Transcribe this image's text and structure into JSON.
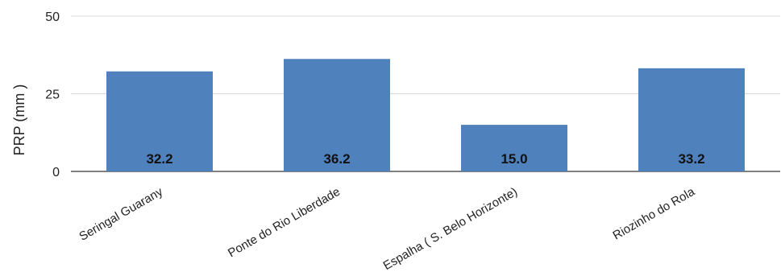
{
  "chart_data": {
    "type": "bar",
    "title": "",
    "xlabel": "",
    "ylabel": "PRP (mm )",
    "ylim": [
      0,
      50
    ],
    "yticks": [
      0,
      25,
      50
    ],
    "grid": true,
    "legend": "none",
    "categories": [
      "Seringal Guarany",
      "Ponte do Rio Liberdade",
      "Espalha ( S. Belo Horizonte)",
      "Riozinho do Rola"
    ],
    "values": [
      32.2,
      36.2,
      15.0,
      33.2
    ],
    "data_labels": [
      "32.2",
      "36.2",
      "15.0",
      "33.2"
    ],
    "colors": {
      "bar": "#4f81bd",
      "grid": "#d9d9d9",
      "axis": "#333333"
    }
  }
}
